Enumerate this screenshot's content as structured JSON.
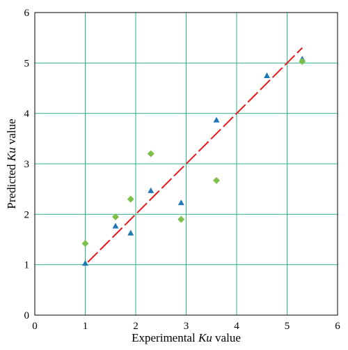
{
  "chart_data": {
    "type": "scatter",
    "title": "",
    "xlabel": {
      "pre": "Experimental ",
      "em": "Ku",
      "post": " value"
    },
    "ylabel": {
      "pre": "Predicted ",
      "em": "Ku",
      "post": " value"
    },
    "xlim": [
      0,
      6
    ],
    "ylim": [
      0,
      6
    ],
    "xticks": [
      "0",
      "1",
      "2",
      "3",
      "4",
      "5",
      "6"
    ],
    "yticks": [
      "0",
      "1",
      "2",
      "3",
      "4",
      "5",
      "6"
    ],
    "grid": true,
    "colors": {
      "grid": "#2fb58a",
      "frame": "#000000",
      "triangle": "#1f77b4",
      "diamond": "#7cc04a",
      "line": "#e31a1c"
    },
    "series": [
      {
        "marker": "triangle",
        "points": [
          [
            1.0,
            1.03
          ],
          [
            1.6,
            1.77
          ],
          [
            1.9,
            1.63
          ],
          [
            2.3,
            2.47
          ],
          [
            2.9,
            2.23
          ],
          [
            3.6,
            3.87
          ],
          [
            4.6,
            4.75
          ],
          [
            5.3,
            5.08
          ]
        ]
      },
      {
        "marker": "diamond",
        "points": [
          [
            1.0,
            1.42
          ],
          [
            1.6,
            1.95
          ],
          [
            1.9,
            2.3
          ],
          [
            2.3,
            3.2
          ],
          [
            2.9,
            1.9
          ],
          [
            3.6,
            2.67
          ],
          [
            5.3,
            5.03
          ]
        ]
      }
    ],
    "fit_line": {
      "style": "dashed",
      "from": [
        1.05,
        1.05
      ],
      "to": [
        5.3,
        5.3
      ]
    }
  }
}
